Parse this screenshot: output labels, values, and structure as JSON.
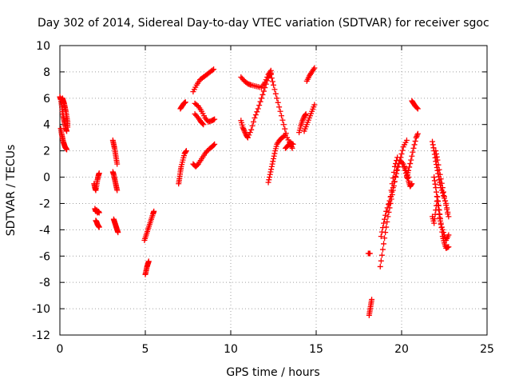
{
  "chart_data": {
    "type": "scatter",
    "title": "Day 302 of 2014, Sidereal Day-to-day VTEC variation (SDTVAR) for receiver sgoc",
    "xlabel": "GPS time / hours",
    "ylabel": "SDTVAR / TECUs",
    "xlim": [
      0,
      25
    ],
    "ylim": [
      -12,
      10
    ],
    "xticks": [
      "0",
      "5",
      "10",
      "15",
      "20",
      "25"
    ],
    "yticks": [
      "-12",
      "-10",
      "-8",
      "-6",
      "-4",
      "-2",
      "0",
      "2",
      "4",
      "6",
      "8",
      "10"
    ],
    "grid": true,
    "marker": "+",
    "color": "#ff0000",
    "series": [
      {
        "tracks": [
          [
            [
              0.0,
              6.1
            ],
            [
              0.05,
              5.9
            ],
            [
              0.1,
              5.5
            ],
            [
              0.15,
              5.0
            ],
            [
              0.2,
              4.6
            ],
            [
              0.25,
              4.3
            ],
            [
              0.3,
              4.0
            ],
            [
              0.35,
              3.7
            ],
            [
              0.4,
              3.5
            ]
          ],
          [
            [
              0.05,
              3.7
            ],
            [
              0.1,
              3.3
            ],
            [
              0.15,
              3.0
            ],
            [
              0.2,
              2.7
            ],
            [
              0.25,
              2.5
            ],
            [
              0.3,
              2.3
            ],
            [
              0.35,
              2.2
            ],
            [
              0.4,
              2.1
            ]
          ],
          [
            [
              0.15,
              6.0
            ],
            [
              0.2,
              5.8
            ],
            [
              0.25,
              5.6
            ],
            [
              0.3,
              5.3
            ],
            [
              0.35,
              5.0
            ],
            [
              0.4,
              4.6
            ],
            [
              0.45,
              4.2
            ],
            [
              0.45,
              3.8
            ]
          ],
          [
            [
              2.0,
              -0.5
            ],
            [
              2.05,
              -0.8
            ],
            [
              2.1,
              -1.0
            ],
            [
              2.15,
              -0.6
            ],
            [
              2.2,
              -0.2
            ],
            [
              2.25,
              0.1
            ],
            [
              2.3,
              0.3
            ]
          ],
          [
            [
              2.05,
              -2.4
            ],
            [
              2.1,
              -2.6
            ],
            [
              2.15,
              -2.5
            ],
            [
              2.2,
              -2.7
            ],
            [
              2.25,
              -2.6
            ],
            [
              2.3,
              -2.7
            ]
          ],
          [
            [
              2.1,
              -3.3
            ],
            [
              2.15,
              -3.4
            ],
            [
              2.2,
              -3.6
            ],
            [
              2.25,
              -3.7
            ],
            [
              2.3,
              -3.8
            ]
          ],
          [
            [
              3.1,
              2.8
            ],
            [
              3.15,
              2.5
            ],
            [
              3.2,
              2.2
            ],
            [
              3.25,
              1.8
            ],
            [
              3.3,
              1.4
            ],
            [
              3.35,
              1.0
            ]
          ],
          [
            [
              3.1,
              0.4
            ],
            [
              3.15,
              0.2
            ],
            [
              3.2,
              -0.1
            ],
            [
              3.25,
              -0.4
            ],
            [
              3.3,
              -0.7
            ],
            [
              3.35,
              -1.0
            ]
          ],
          [
            [
              3.15,
              -3.2
            ],
            [
              3.2,
              -3.4
            ],
            [
              3.25,
              -3.6
            ],
            [
              3.3,
              -3.8
            ],
            [
              3.35,
              -4.0
            ],
            [
              3.4,
              -4.2
            ]
          ],
          [
            [
              4.95,
              -4.8
            ],
            [
              5.05,
              -4.4
            ],
            [
              5.15,
              -4.0
            ],
            [
              5.25,
              -3.6
            ],
            [
              5.35,
              -3.2
            ],
            [
              5.45,
              -2.8
            ],
            [
              5.5,
              -2.6
            ]
          ],
          [
            [
              5.0,
              -7.4
            ],
            [
              5.05,
              -7.1
            ],
            [
              5.1,
              -6.8
            ],
            [
              5.15,
              -6.6
            ],
            [
              5.2,
              -6.4
            ]
          ],
          [
            [
              6.95,
              -0.5
            ],
            [
              7.0,
              -0.1
            ],
            [
              7.05,
              0.4
            ],
            [
              7.1,
              0.8
            ],
            [
              7.2,
              1.3
            ],
            [
              7.3,
              1.8
            ],
            [
              7.4,
              2.0
            ]
          ],
          [
            [
              7.05,
              5.2
            ],
            [
              7.15,
              5.4
            ],
            [
              7.25,
              5.6
            ],
            [
              7.35,
              5.7
            ]
          ],
          [
            [
              7.8,
              6.5
            ],
            [
              8.0,
              7.0
            ],
            [
              8.2,
              7.4
            ],
            [
              8.4,
              7.6
            ],
            [
              8.6,
              7.8
            ],
            [
              8.8,
              8.0
            ],
            [
              9.0,
              8.2
            ]
          ],
          [
            [
              7.9,
              5.6
            ],
            [
              8.1,
              5.4
            ],
            [
              8.3,
              5.0
            ],
            [
              8.5,
              4.5
            ],
            [
              8.7,
              4.2
            ],
            [
              8.9,
              4.3
            ],
            [
              9.05,
              4.4
            ]
          ],
          [
            [
              7.8,
              1.0
            ],
            [
              7.95,
              0.8
            ],
            [
              8.1,
              1.0
            ],
            [
              8.3,
              1.4
            ],
            [
              8.5,
              1.8
            ],
            [
              8.7,
              2.1
            ],
            [
              8.9,
              2.3
            ],
            [
              9.05,
              2.5
            ]
          ],
          [
            [
              7.9,
              4.8
            ],
            [
              8.1,
              4.5
            ],
            [
              8.25,
              4.2
            ],
            [
              8.4,
              4.0
            ]
          ],
          [
            [
              10.6,
              7.6
            ],
            [
              10.8,
              7.3
            ],
            [
              11.0,
              7.1
            ],
            [
              11.2,
              7.0
            ],
            [
              11.5,
              6.9
            ],
            [
              11.8,
              6.8
            ],
            [
              12.0,
              7.2
            ],
            [
              12.2,
              7.8
            ],
            [
              12.35,
              8.1
            ]
          ],
          [
            [
              10.6,
              4.3
            ],
            [
              10.7,
              3.8
            ],
            [
              10.8,
              3.5
            ],
            [
              10.9,
              3.2
            ],
            [
              11.0,
              3.0
            ],
            [
              11.2,
              3.6
            ],
            [
              11.4,
              4.5
            ],
            [
              11.6,
              5.2
            ],
            [
              11.8,
              6.0
            ],
            [
              12.0,
              6.8
            ],
            [
              12.2,
              7.6
            ],
            [
              12.35,
              7.9
            ]
          ],
          [
            [
              12.35,
              7.8
            ],
            [
              12.5,
              7.0
            ],
            [
              12.7,
              6.0
            ],
            [
              12.9,
              5.0
            ],
            [
              13.1,
              4.0
            ],
            [
              13.3,
              3.0
            ],
            [
              13.5,
              2.5
            ],
            [
              13.6,
              2.2
            ]
          ],
          [
            [
              12.2,
              -0.4
            ],
            [
              12.3,
              0.2
            ],
            [
              12.4,
              0.8
            ],
            [
              12.5,
              1.4
            ],
            [
              12.6,
              2.0
            ],
            [
              12.7,
              2.5
            ],
            [
              12.85,
              2.8
            ],
            [
              13.0,
              3.0
            ],
            [
              13.2,
              3.2
            ]
          ],
          [
            [
              13.2,
              2.2
            ],
            [
              13.35,
              2.4
            ],
            [
              13.5,
              2.6
            ],
            [
              13.65,
              2.5
            ]
          ],
          [
            [
              14.0,
              3.4
            ],
            [
              14.1,
              3.9
            ],
            [
              14.2,
              4.3
            ],
            [
              14.3,
              4.6
            ],
            [
              14.4,
              4.8
            ]
          ],
          [
            [
              14.45,
              7.3
            ],
            [
              14.6,
              7.7
            ],
            [
              14.75,
              8.0
            ],
            [
              14.9,
              8.3
            ]
          ],
          [
            [
              14.3,
              3.5
            ],
            [
              14.45,
              4.0
            ],
            [
              14.6,
              4.5
            ],
            [
              14.75,
              5.0
            ],
            [
              14.9,
              5.5
            ]
          ],
          [
            [
              18.05,
              -5.8
            ],
            [
              18.15,
              -5.8
            ]
          ],
          [
            [
              18.1,
              -10.5
            ],
            [
              18.15,
              -10.1
            ],
            [
              18.2,
              -9.7
            ],
            [
              18.25,
              -9.3
            ]
          ],
          [
            [
              18.75,
              -6.8
            ],
            [
              18.9,
              -5.5
            ],
            [
              19.05,
              -4.2
            ],
            [
              19.2,
              -3.0
            ],
            [
              19.35,
              -2.0
            ],
            [
              19.5,
              -1.0
            ],
            [
              19.65,
              0.0
            ],
            [
              19.8,
              0.8
            ],
            [
              19.95,
              1.5
            ],
            [
              20.1,
              2.3
            ],
            [
              20.3,
              2.8
            ]
          ],
          [
            [
              18.8,
              -4.5
            ],
            [
              18.95,
              -3.5
            ],
            [
              19.1,
              -2.6
            ],
            [
              19.3,
              -1.8
            ],
            [
              19.5,
              -0.8
            ],
            [
              19.7,
              0.5
            ],
            [
              19.9,
              1.3
            ],
            [
              20.1,
              1.0
            ],
            [
              20.25,
              0.5
            ],
            [
              20.4,
              0.0
            ]
          ],
          [
            [
              19.3,
              -2.0
            ],
            [
              19.45,
              -0.5
            ],
            [
              19.6,
              0.8
            ],
            [
              19.75,
              1.5
            ]
          ],
          [
            [
              20.3,
              0.0
            ],
            [
              20.4,
              0.5
            ],
            [
              20.55,
              1.3
            ],
            [
              20.7,
              2.2
            ],
            [
              20.85,
              3.0
            ],
            [
              20.95,
              3.3
            ]
          ],
          [
            [
              20.1,
              1.0
            ],
            [
              20.25,
              0.3
            ],
            [
              20.4,
              -0.3
            ],
            [
              20.5,
              -0.7
            ],
            [
              20.6,
              -0.5
            ]
          ],
          [
            [
              20.6,
              5.8
            ],
            [
              20.7,
              5.6
            ],
            [
              20.8,
              5.4
            ],
            [
              20.95,
              5.2
            ]
          ],
          [
            [
              21.8,
              2.7
            ],
            [
              21.9,
              2.0
            ],
            [
              22.0,
              1.2
            ],
            [
              22.1,
              0.5
            ],
            [
              22.2,
              -0.2
            ],
            [
              22.3,
              -0.8
            ],
            [
              22.45,
              -1.4
            ],
            [
              22.6,
              -2.0
            ],
            [
              22.75,
              -3.0
            ]
          ],
          [
            [
              21.8,
              -3.0
            ],
            [
              21.9,
              -3.5
            ],
            [
              22.0,
              -2.5
            ],
            [
              22.1,
              -1.5
            ],
            [
              22.2,
              -2.5
            ],
            [
              22.3,
              -3.5
            ],
            [
              22.4,
              -4.5
            ],
            [
              22.5,
              -5.0
            ],
            [
              22.6,
              -5.4
            ],
            [
              22.75,
              -5.3
            ]
          ],
          [
            [
              21.9,
              0.0
            ],
            [
              22.0,
              -0.8
            ],
            [
              22.1,
              -1.8
            ],
            [
              22.2,
              -2.8
            ],
            [
              22.3,
              -3.6
            ],
            [
              22.45,
              -4.2
            ],
            [
              22.6,
              -4.8
            ],
            [
              22.75,
              -4.4
            ]
          ],
          [
            [
              22.0,
              2.0
            ],
            [
              22.1,
              1.3
            ],
            [
              22.25,
              0.2
            ],
            [
              22.4,
              -0.8
            ],
            [
              22.55,
              -1.8
            ],
            [
              22.7,
              -2.8
            ]
          ]
        ]
      }
    ]
  }
}
